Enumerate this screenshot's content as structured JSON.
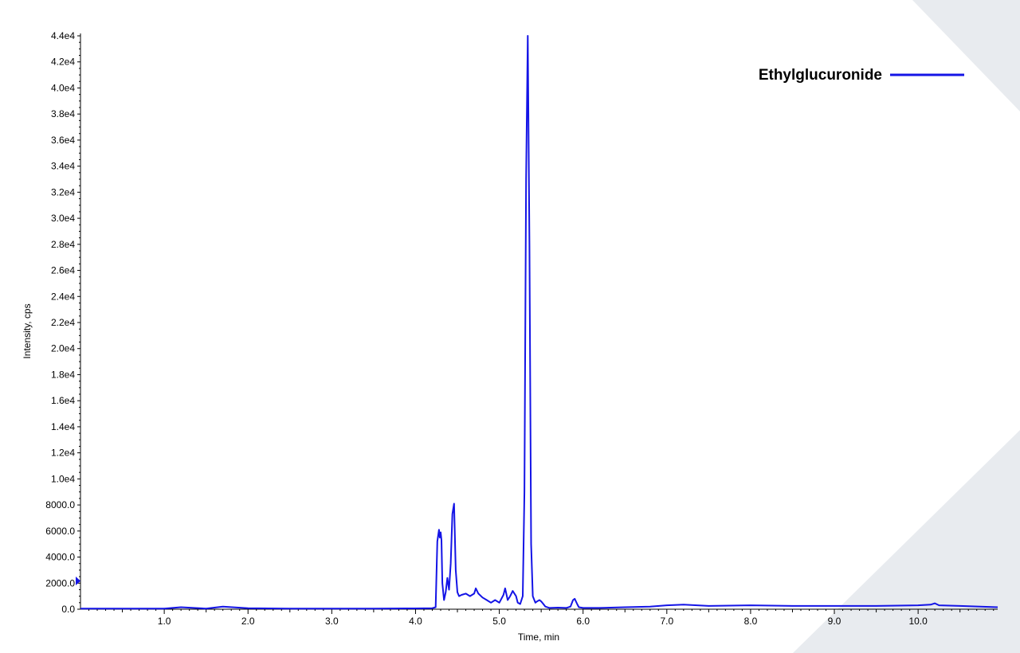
{
  "chart_data": {
    "type": "line",
    "xlabel": "Time, min",
    "ylabel": "Intensity, cps",
    "xlim": [
      0.0,
      10.95
    ],
    "ylim": [
      0,
      44000
    ],
    "x_ticks": [
      "1.0",
      "2.0",
      "3.0",
      "4.0",
      "5.0",
      "6.0",
      "7.0",
      "8.0",
      "9.0",
      "10.0"
    ],
    "y_ticks": [
      "0.0",
      "2000.0",
      "4000.0",
      "6000.0",
      "8000.0",
      "1.0e4",
      "1.2e4",
      "1.4e4",
      "1.6e4",
      "1.8e4",
      "2.0e4",
      "2.2e4",
      "2.4e4",
      "2.6e4",
      "2.8e4",
      "3.0e4",
      "3.2e4",
      "3.4e4",
      "3.6e4",
      "3.8e4",
      "4.0e4",
      "4.2e4",
      "4.4e4"
    ],
    "grid": false,
    "legend_position": "top-right",
    "colors": {
      "series": "#1414e6",
      "background_shape": "#e8ebef"
    },
    "series": [
      {
        "name": "Ethylglucuronide",
        "x": [
          0.0,
          0.5,
          1.0,
          1.2,
          1.5,
          1.7,
          2.0,
          2.5,
          3.0,
          3.5,
          4.0,
          4.2,
          4.24,
          4.26,
          4.28,
          4.29,
          4.3,
          4.31,
          4.32,
          4.34,
          4.36,
          4.38,
          4.4,
          4.42,
          4.44,
          4.46,
          4.48,
          4.5,
          4.52,
          4.55,
          4.6,
          4.65,
          4.7,
          4.72,
          4.75,
          4.8,
          4.85,
          4.9,
          4.95,
          5.0,
          5.05,
          5.07,
          5.1,
          5.13,
          5.16,
          5.2,
          5.22,
          5.25,
          5.28,
          5.3,
          5.32,
          5.34,
          5.36,
          5.38,
          5.4,
          5.43,
          5.45,
          5.48,
          5.5,
          5.52,
          5.55,
          5.6,
          5.7,
          5.8,
          5.85,
          5.88,
          5.9,
          5.93,
          5.95,
          6.0,
          6.2,
          6.5,
          6.8,
          7.0,
          7.2,
          7.5,
          8.0,
          8.5,
          9.0,
          9.5,
          10.0,
          10.15,
          10.2,
          10.25,
          10.5,
          10.95
        ],
        "y": [
          50,
          50,
          50,
          150,
          50,
          200,
          80,
          50,
          50,
          50,
          60,
          80,
          150,
          5200,
          6100,
          5500,
          5900,
          5300,
          2000,
          700,
          1300,
          2400,
          1500,
          3500,
          7300,
          8100,
          3000,
          1300,
          1000,
          1100,
          1200,
          1000,
          1200,
          1600,
          1200,
          900,
          700,
          500,
          700,
          500,
          1100,
          1600,
          700,
          1000,
          1400,
          1000,
          500,
          400,
          1000,
          9000,
          33000,
          44000,
          28000,
          5000,
          1000,
          500,
          600,
          700,
          600,
          450,
          200,
          100,
          120,
          100,
          200,
          700,
          800,
          400,
          150,
          100,
          100,
          150,
          200,
          300,
          350,
          250,
          300,
          250,
          250,
          250,
          300,
          350,
          450,
          300,
          250,
          150
        ]
      }
    ]
  }
}
